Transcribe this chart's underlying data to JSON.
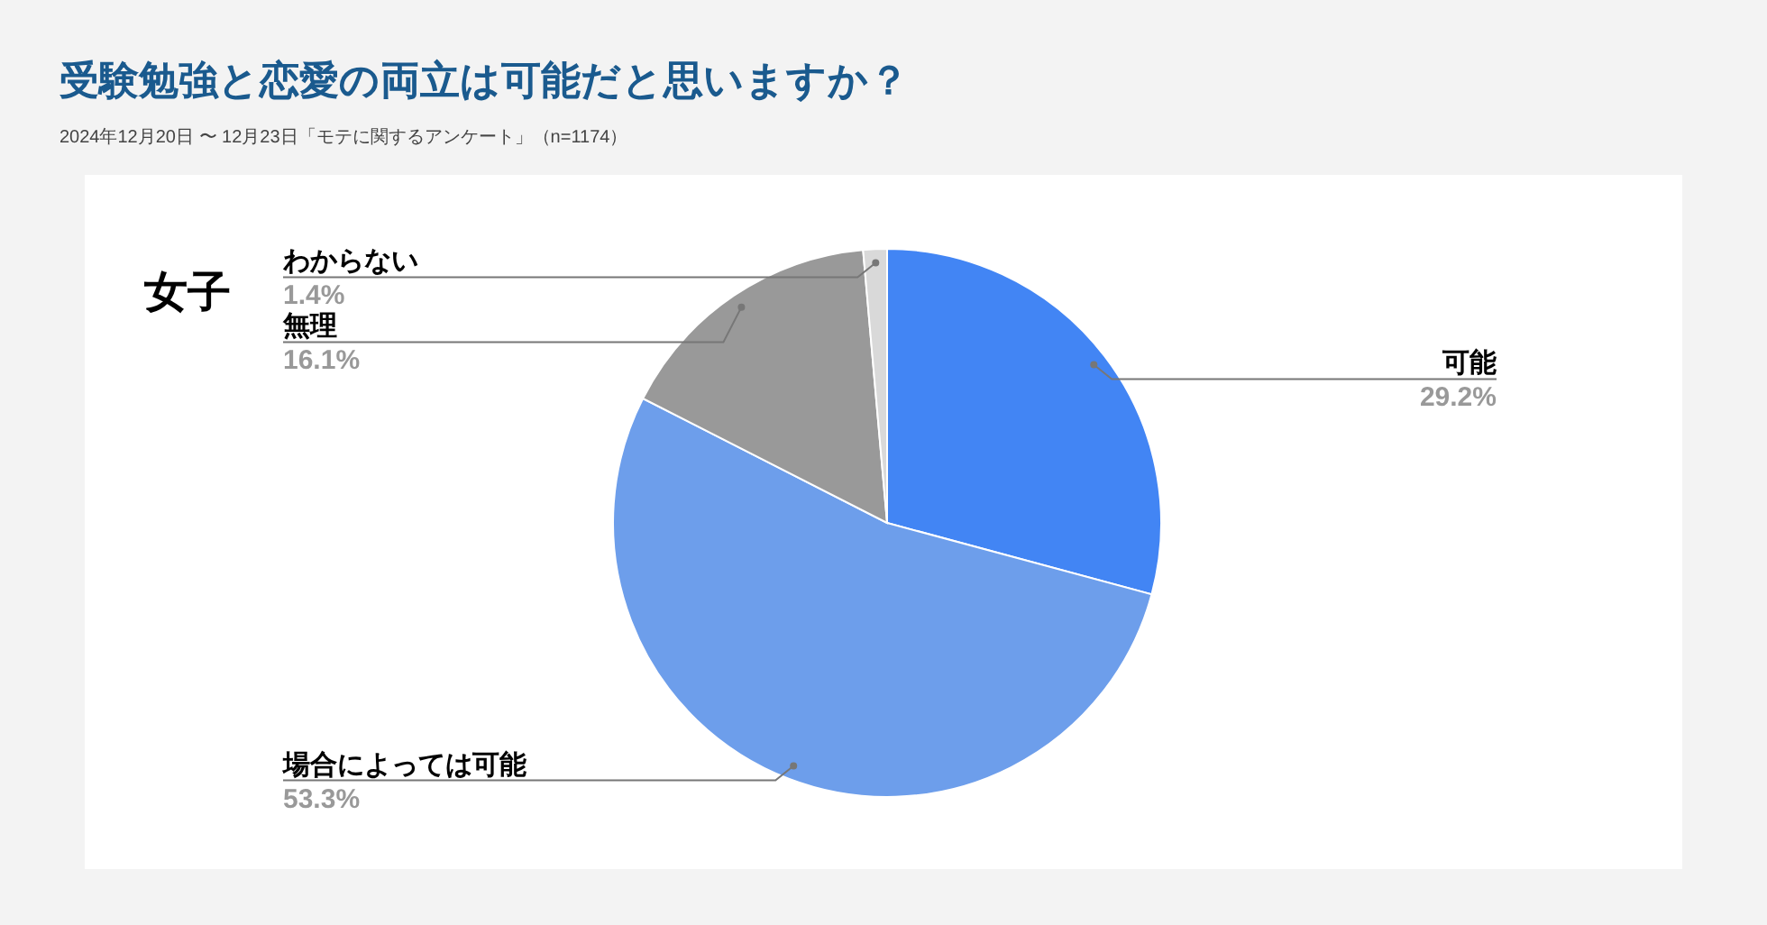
{
  "chart_data": {
    "type": "pie",
    "title": "受験勉強と恋愛の両立は可能だと思いますか？",
    "subtitle": "2024年12月20日 〜 12月23日「モテに関するアンケート」（n=1174）",
    "annotations": [
      "女子"
    ],
    "categories": [
      "可能",
      "場合によっては可能",
      "無理",
      "わからない"
    ],
    "values": [
      29.2,
      53.3,
      16.1,
      1.4
    ],
    "colors": [
      "#4285f4",
      "#6d9eeb",
      "#999999",
      "#d9d9d9"
    ],
    "value_labels": [
      "29.2%",
      "53.3%",
      "16.1%",
      "1.4%"
    ]
  }
}
